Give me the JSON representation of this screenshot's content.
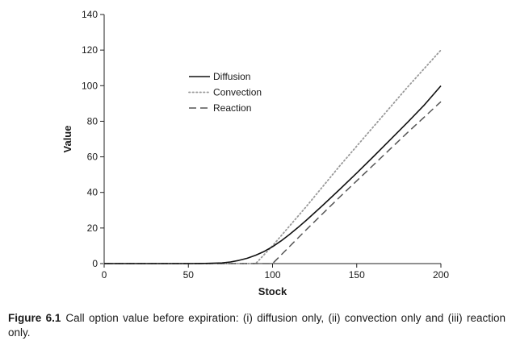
{
  "chart_data": {
    "type": "line",
    "xlabel": "Stock",
    "ylabel": "Value",
    "xlim": [
      0,
      200
    ],
    "ylim": [
      0,
      140
    ],
    "xticks": [
      0,
      50,
      100,
      150,
      200
    ],
    "yticks": [
      0,
      20,
      40,
      60,
      80,
      100,
      120,
      140
    ],
    "grid": false,
    "legend_position": "upper-left-center",
    "series": [
      {
        "name": "Diffusion",
        "style": "solid",
        "color": "#111111",
        "x": [
          0,
          50,
          60,
          70,
          75,
          80,
          85,
          90,
          95,
          100,
          105,
          110,
          115,
          120,
          130,
          140,
          150,
          160,
          170,
          180,
          190,
          200
        ],
        "y": [
          0,
          0,
          0.1,
          0.4,
          0.9,
          1.8,
          3.0,
          4.7,
          6.8,
          9.5,
          12.7,
          16.3,
          20.2,
          24.3,
          32.9,
          41.8,
          50.9,
          60.2,
          69.7,
          79.2,
          89.0,
          99.9
        ]
      },
      {
        "name": "Convection",
        "style": "dotted",
        "color": "#999999",
        "x": [
          0,
          90,
          100,
          120,
          140,
          160,
          180,
          200
        ],
        "y": [
          0,
          0,
          10,
          32,
          55,
          77,
          99,
          120
        ]
      },
      {
        "name": "Reaction",
        "style": "dashed",
        "color": "#555555",
        "x": [
          0,
          100,
          110,
          120,
          140,
          160,
          180,
          200
        ],
        "y": [
          0,
          0,
          9.5,
          19,
          37.5,
          55.5,
          73.5,
          91
        ]
      }
    ]
  },
  "caption": {
    "label": "Figure 6.1",
    "text": "Call option value before expiration: (i) diffusion only, (ii) convection only and (iii) reaction only."
  }
}
